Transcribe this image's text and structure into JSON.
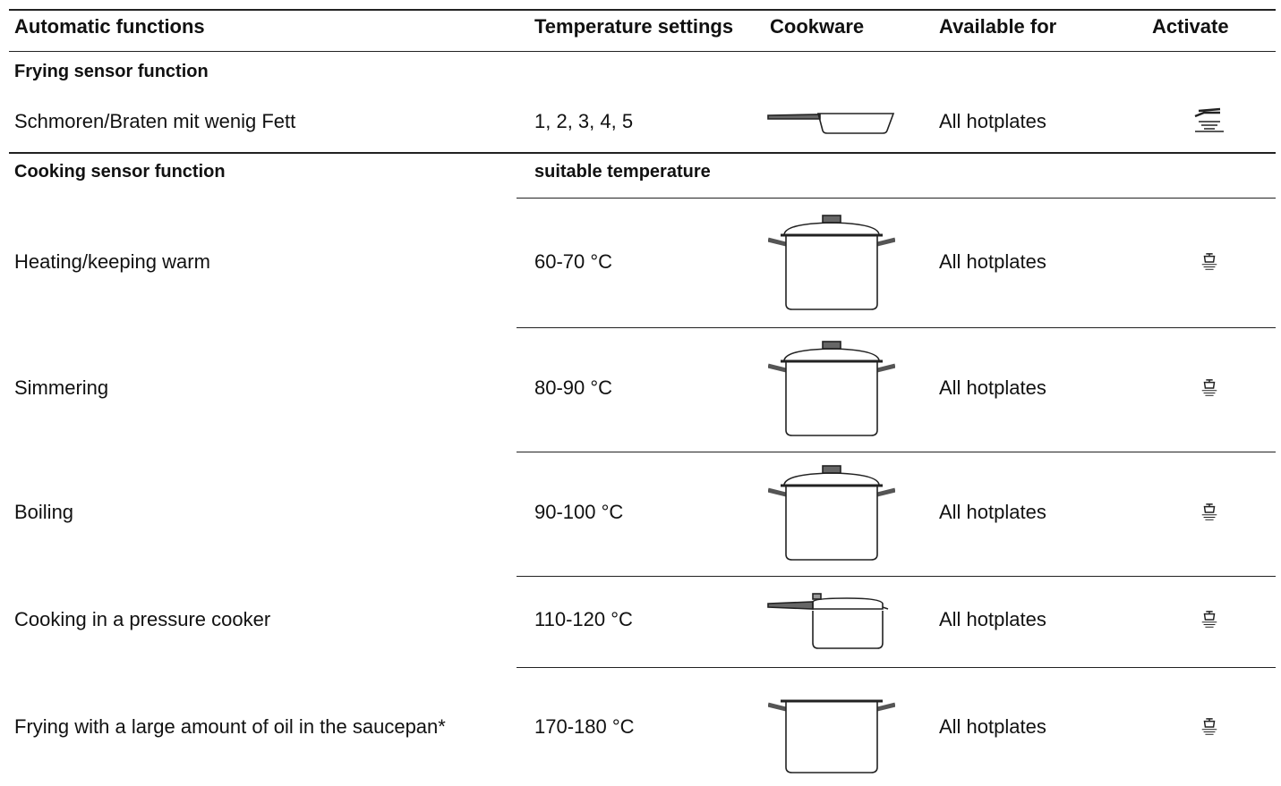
{
  "header": [
    "Automatic functions",
    "Temperature settings",
    "Cookware",
    "Available for",
    "Activate"
  ],
  "sections": [
    {
      "title": "Frying sensor function",
      "rows": [
        {
          "function": "Schmoren/Braten mit wenig Fett",
          "temperature": "1, 2, 3, 4, 5",
          "available": "All hotplates"
        }
      ]
    },
    {
      "title": "Cooking sensor function",
      "subtitle": "suitable temperature",
      "rows": [
        {
          "function": "Heating/keeping warm",
          "temperature": "60-70 °C",
          "available": "All hotplates"
        },
        {
          "function": "Simmering",
          "temperature": "80-90 °C",
          "available": "All hotplates"
        },
        {
          "function": "Boiling",
          "temperature": "90-100 °C",
          "available": "All hotplates"
        },
        {
          "function": "Cooking in a pressure cooker",
          "temperature": "110-120 °C",
          "available": "All hotplates"
        },
        {
          "function": "Frying with a large amount of oil in the saucepan*",
          "temperature": "170-180 °C",
          "available": "All hotplates"
        }
      ]
    }
  ]
}
